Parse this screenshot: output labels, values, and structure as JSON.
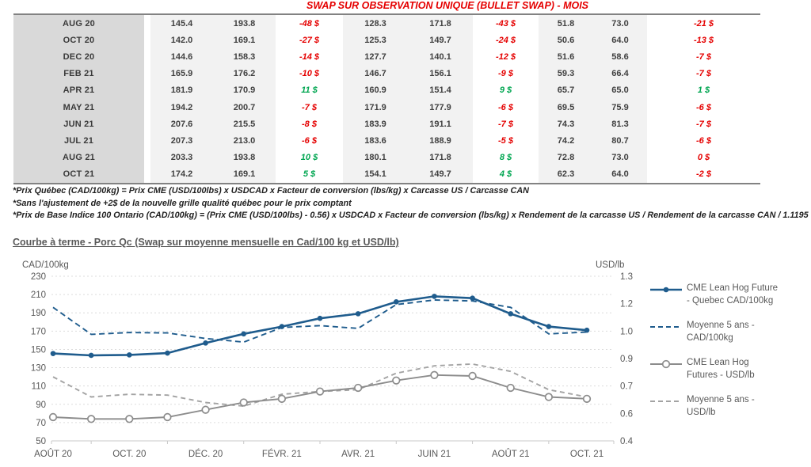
{
  "report": {
    "table": {
      "title": "SWAP SUR OBSERVATION UNIQUE (BULLET SWAP) - MOIS",
      "rows": [
        {
          "month": "AUG 20",
          "values": [
            "145.4",
            "193.8",
            "-48 $",
            "128.3",
            "171.8",
            "-43 $",
            "51.8",
            "73.0",
            "-21 $"
          ],
          "signs": [
            "",
            "",
            "neg",
            "",
            "",
            "neg",
            "",
            "",
            "neg"
          ]
        },
        {
          "month": "OCT 20",
          "values": [
            "142.0",
            "169.1",
            "-27 $",
            "125.3",
            "149.7",
            "-24 $",
            "50.6",
            "64.0",
            "-13 $"
          ],
          "signs": [
            "",
            "",
            "neg",
            "",
            "",
            "neg",
            "",
            "",
            "neg"
          ]
        },
        {
          "month": "DEC 20",
          "values": [
            "144.6",
            "158.3",
            "-14 $",
            "127.7",
            "140.1",
            "-12 $",
            "51.6",
            "58.6",
            "-7 $"
          ],
          "signs": [
            "",
            "",
            "neg",
            "",
            "",
            "neg",
            "",
            "",
            "neg"
          ]
        },
        {
          "month": "FEB 21",
          "values": [
            "165.9",
            "176.2",
            "-10 $",
            "146.7",
            "156.1",
            "-9 $",
            "59.3",
            "66.4",
            "-7 $"
          ],
          "signs": [
            "",
            "",
            "neg",
            "",
            "",
            "neg",
            "",
            "",
            "neg"
          ]
        },
        {
          "month": "APR 21",
          "values": [
            "181.9",
            "170.9",
            "11 $",
            "160.9",
            "151.4",
            "9 $",
            "65.7",
            "65.0",
            "1 $"
          ],
          "signs": [
            "",
            "",
            "pos",
            "",
            "",
            "pos",
            "",
            "",
            "pos"
          ]
        },
        {
          "month": "MAY 21",
          "values": [
            "194.2",
            "200.7",
            "-7 $",
            "171.9",
            "177.9",
            "-6 $",
            "69.5",
            "75.9",
            "-6 $"
          ],
          "signs": [
            "",
            "",
            "neg",
            "",
            "",
            "neg",
            "",
            "",
            "neg"
          ]
        },
        {
          "month": "JUN 21",
          "values": [
            "207.6",
            "215.5",
            "-8 $",
            "183.9",
            "191.1",
            "-7 $",
            "74.3",
            "81.3",
            "-7 $"
          ],
          "signs": [
            "",
            "",
            "neg",
            "",
            "",
            "neg",
            "",
            "",
            "neg"
          ]
        },
        {
          "month": "JUL 21",
          "values": [
            "207.3",
            "213.0",
            "-6 $",
            "183.6",
            "188.9",
            "-5 $",
            "74.2",
            "80.7",
            "-6 $"
          ],
          "signs": [
            "",
            "",
            "neg",
            "",
            "",
            "neg",
            "",
            "",
            "neg"
          ]
        },
        {
          "month": "AUG 21",
          "values": [
            "203.3",
            "193.8",
            "10 $",
            "180.1",
            "171.8",
            "8 $",
            "72.8",
            "73.0",
            "0 $"
          ],
          "signs": [
            "",
            "",
            "pos",
            "",
            "",
            "pos",
            "",
            "",
            "neg"
          ]
        },
        {
          "month": "OCT 21",
          "values": [
            "174.2",
            "169.1",
            "5 $",
            "154.1",
            "149.7",
            "4 $",
            "62.3",
            "64.0",
            "-2 $"
          ],
          "signs": [
            "",
            "",
            "pos",
            "",
            "",
            "pos",
            "",
            "",
            "neg"
          ]
        }
      ]
    },
    "footnotes": [
      "*Prix Québec (CAD/100kg) = Prix CME (USD/100lbs) x USDCAD x Facteur de conversion (lbs/kg) x Carcasse US / Carcasse CAN",
      "*Sans l'ajustement de +2$ de la nouvelle grille qualité québec pour le prix comptant",
      "*Prix de Base Indice 100 Ontario (CAD/100kg) = (Prix CME (USD/100lbs) - 0.56) x USDCAD x Facteur de conversion (lbs/kg) x Rendement de la carcasse US / Rendement de la carcasse CAN / 1.1195"
    ],
    "chart": {
      "title": "Courbe à terme - Porc Qc (Swap sur moyenne mensuelle en Cad/100 kg et USD/lb)"
    },
    "colors": {
      "accent_blue": "#1F5C8D",
      "accent_gray": "#8C8C8C",
      "negative_red": "#e50000",
      "positive_green": "#00a651"
    }
  },
  "chart_data": {
    "type": "line",
    "title": "Courbe à terme - Porc Qc (Swap sur moyenne mensuelle en Cad/100 kg et USD/lb)",
    "left_axis": {
      "label": "CAD/100kg",
      "ticks": [
        230,
        210,
        190,
        170,
        150,
        130,
        110,
        90,
        70,
        50
      ],
      "range": [
        50,
        230
      ]
    },
    "right_axis": {
      "label": "USD/lb",
      "ticks": [
        "1.3",
        "1.2",
        "1.0",
        "0.9",
        "0.7",
        "0.6",
        "0.4"
      ],
      "range": [
        0.4,
        1.3
      ]
    },
    "x_labels": [
      "AOÛT 20",
      "OCT. 20",
      "DÉC. 20",
      "FÉVR. 21",
      "AVR. 21",
      "JUIN 21",
      "AOÛT 21",
      "OCT. 21"
    ],
    "months": [
      "AOÛT 20",
      "SEPT. 20",
      "OCT. 20",
      "NOV. 20",
      "DÉC. 20",
      "JANV. 21",
      "FÉVR. 21",
      "MARS 21",
      "AVR. 21",
      "MAI 21",
      "JUIN 21",
      "JUIL. 21",
      "AOÛT 21",
      "SEPT. 21",
      "OCT. 21"
    ],
    "grid": true,
    "legend_position": "right",
    "series": [
      {
        "name": "CME Lean Hog Future - Quebec CAD/100kg",
        "axis": "left",
        "style": "solid",
        "marker": "filled",
        "color": "#1F5C8D",
        "values": [
          145.5,
          143.5,
          144,
          146,
          157,
          167,
          175,
          184,
          189,
          202,
          208,
          206,
          189,
          175,
          171
        ]
      },
      {
        "name": "Moyenne 5 ans - CAD/100kg",
        "axis": "left",
        "style": "dashed",
        "marker": "none",
        "color": "#1F5C8D",
        "values": [
          196,
          166.5,
          168.5,
          168,
          162,
          158,
          174,
          176,
          173,
          199,
          204,
          203,
          196,
          167,
          169
        ]
      },
      {
        "name": "CME Lean Hog Futures - USD/lb",
        "axis": "right",
        "style": "solid",
        "marker": "open",
        "color": "#8C8C8C",
        "values": [
          0.53,
          0.52,
          0.52,
          0.53,
          0.57,
          0.61,
          0.63,
          0.67,
          0.69,
          0.73,
          0.76,
          0.755,
          0.69,
          0.64,
          0.63
        ]
      },
      {
        "name": "Moyenne 5 ans - USD/lb",
        "axis": "right",
        "style": "dashed",
        "marker": "none",
        "color": "#A3A3A3",
        "values": [
          0.75,
          0.64,
          0.655,
          0.65,
          0.61,
          0.59,
          0.655,
          0.67,
          0.68,
          0.77,
          0.81,
          0.82,
          0.78,
          0.68,
          0.64
        ]
      }
    ]
  }
}
